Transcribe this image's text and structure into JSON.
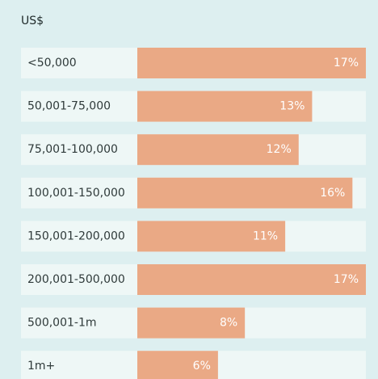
{
  "chart_data": {
    "type": "bar",
    "orientation": "horizontal",
    "subtitle": "US$",
    "categories": [
      "<50,000",
      "50,001-75,000",
      "75,001-100,000",
      "100,001-150,000",
      "150,001-200,000",
      "200,001-500,000",
      "500,001-1m",
      "1m+"
    ],
    "values": [
      17,
      13,
      12,
      16,
      11,
      17,
      8,
      6
    ],
    "value_labels": [
      "17%",
      "13%",
      "12%",
      "16%",
      "11%",
      "17%",
      "8%",
      "6%"
    ],
    "color": "#eaa985",
    "xlim": [
      0,
      17
    ]
  }
}
